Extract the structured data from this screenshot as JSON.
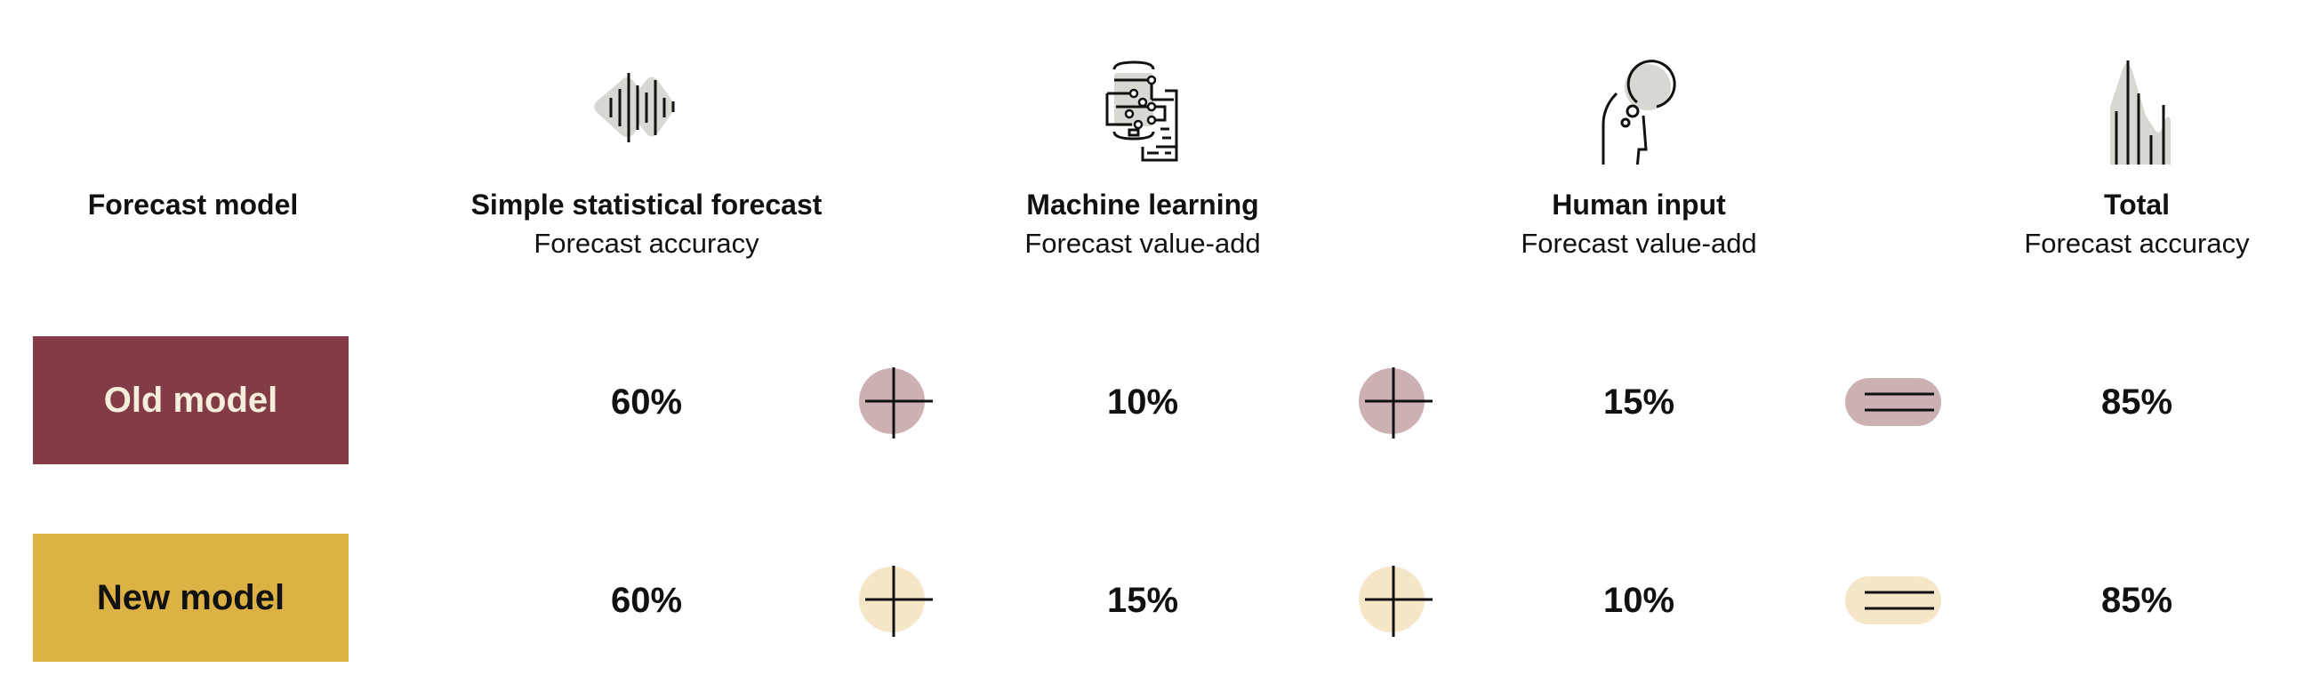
{
  "row_header": "Forecast model",
  "columns": [
    {
      "title": "Simple statistical forecast",
      "subtitle": "Forecast accuracy",
      "icon": "waveform-icon"
    },
    {
      "title": "Machine learning",
      "subtitle": "Forecast value-add",
      "icon": "circuit-device-icon"
    },
    {
      "title": "Human input",
      "subtitle": "Forecast value-add",
      "icon": "head-thought-icon"
    },
    {
      "title": "Total",
      "subtitle": "Forecast accuracy",
      "icon": "area-bars-icon"
    }
  ],
  "rows": [
    {
      "label": "Old model",
      "values": [
        "60%",
        "10%",
        "15%",
        "85%"
      ],
      "color": "#833B47",
      "op_color": "#CDB0B2",
      "text_color": "#F6EEDC"
    },
    {
      "label": "New model",
      "values": [
        "60%",
        "15%",
        "10%",
        "85%"
      ],
      "color": "#DDB244",
      "op_color": "#F5E6C8",
      "text_color": "#111111"
    }
  ],
  "operators": [
    "plus",
    "plus",
    "equals"
  ],
  "icon_fill": "#D8D7D1"
}
